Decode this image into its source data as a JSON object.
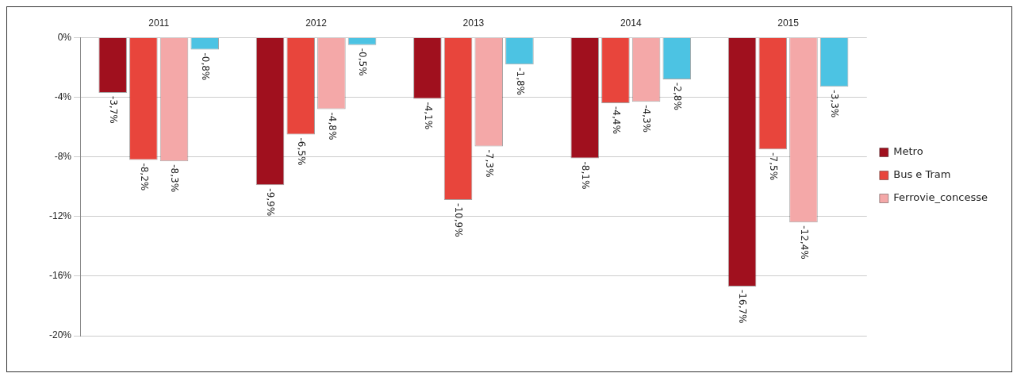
{
  "chart_data": {
    "type": "bar",
    "categories": [
      "2011",
      "2012",
      "2013",
      "2014",
      "2015"
    ],
    "series": [
      {
        "name": "Metro",
        "color": "#a0101e",
        "values": [
          -3.7,
          -9.9,
          -4.1,
          -8.1,
          -16.7
        ],
        "value_labels": [
          "-3,7%",
          "-9,9%",
          "-4,1%",
          "-8,1%",
          "-16,7%"
        ]
      },
      {
        "name": "Bus e Tram",
        "color": "#e8453c",
        "values": [
          -8.2,
          -6.5,
          -10.9,
          -4.4,
          -7.5
        ],
        "value_labels": [
          "-8,2%",
          "-6,5%",
          "-10,9%",
          "-4,4%",
          "-7,5%"
        ]
      },
      {
        "name": "Ferrovie_concesse",
        "color": "#f4a8a8",
        "values": [
          -8.3,
          -4.8,
          -7.3,
          -4.3,
          -12.4
        ],
        "value_labels": [
          "-8,3%",
          "-4,8%",
          "-7,3%",
          "-4,3%",
          "-12,4%"
        ]
      },
      {
        "color": "#4cc3e3",
        "values": [
          -0.8,
          -0.5,
          -1.8,
          -2.8,
          -3.3
        ],
        "value_labels": [
          "-0,8%",
          "-0,5%",
          "-1,8%",
          "-2,8%",
          "-3,3%"
        ]
      }
    ],
    "ylim": [
      -20,
      0
    ],
    "yticks": [
      {
        "value": 0,
        "label": "0%"
      },
      {
        "value": -4,
        "label": "-4%"
      },
      {
        "value": -8,
        "label": "-8%"
      },
      {
        "value": -12,
        "label": "-12%"
      },
      {
        "value": -16,
        "label": "-16%"
      },
      {
        "value": -20,
        "label": "-20%"
      }
    ],
    "grid": "y",
    "legend": "right"
  }
}
